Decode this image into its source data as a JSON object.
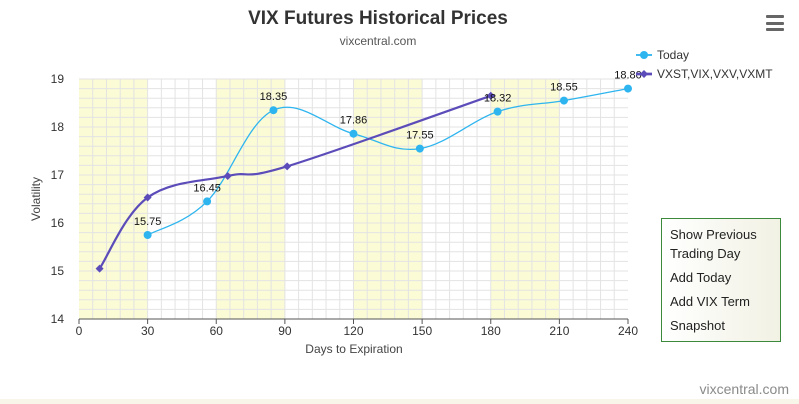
{
  "colors": {
    "today": "#2eb5ef",
    "term": "#5b4cb9",
    "band": "#fbfbd6",
    "grid": "#e3e3e3",
    "panel_border": "#3b8a3b"
  },
  "menu": {
    "icon": "hamburger-menu-icon"
  },
  "side_panel": {
    "items": [
      "Show Previous Trading Day",
      "Add Today",
      "Add VIX Term",
      "Snapshot"
    ]
  },
  "credit": "vixcentral.com",
  "chart_data": {
    "type": "line",
    "title": "VIX Futures Historical Prices",
    "subtitle": "vixcentral.com",
    "xlabel": "Days to Expiration",
    "ylabel": "Volatility",
    "xlim": [
      0,
      240
    ],
    "ylim": [
      14,
      19
    ],
    "x_ticks": [
      0,
      30,
      60,
      90,
      120,
      150,
      180,
      210,
      240
    ],
    "y_ticks": [
      14,
      15,
      16,
      17,
      18,
      19
    ],
    "grid": true,
    "legend_position": "top-right",
    "shaded_bands": [
      [
        0,
        30
      ],
      [
        60,
        90
      ],
      [
        120,
        150
      ],
      [
        180,
        210
      ]
    ],
    "series": [
      {
        "name": "Today",
        "marker": "circle",
        "x": [
          30,
          56,
          85,
          120,
          149,
          183,
          212,
          240
        ],
        "y": [
          15.75,
          16.45,
          18.35,
          17.86,
          17.55,
          18.32,
          18.55,
          18.8
        ],
        "labels": [
          "15.75",
          "16.45",
          "18.35",
          "17.86",
          "17.55",
          "18.32",
          "18.55",
          "18.80"
        ]
      },
      {
        "name": "VXST,VIX,VXV,VXMT",
        "marker": "diamond",
        "x": [
          9,
          30,
          65,
          91,
          180
        ],
        "y": [
          15.05,
          16.53,
          16.98,
          17.18,
          18.65
        ],
        "labels": []
      }
    ]
  }
}
